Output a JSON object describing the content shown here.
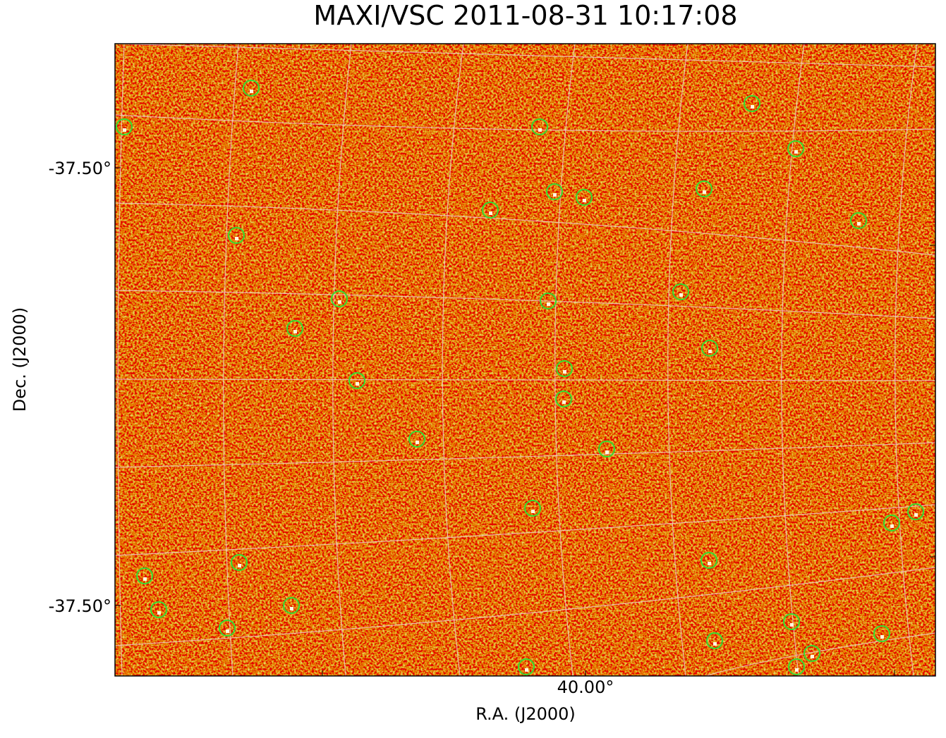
{
  "title": "MAXI/VSC 2011-08-31 10:17:08",
  "x_label": "R.A. (J2000)",
  "y_label": "Dec. (J2000)",
  "x_ticks": [
    "40.00°"
  ],
  "y_ticks": [
    "-37.50°",
    "-37.50°"
  ]
}
